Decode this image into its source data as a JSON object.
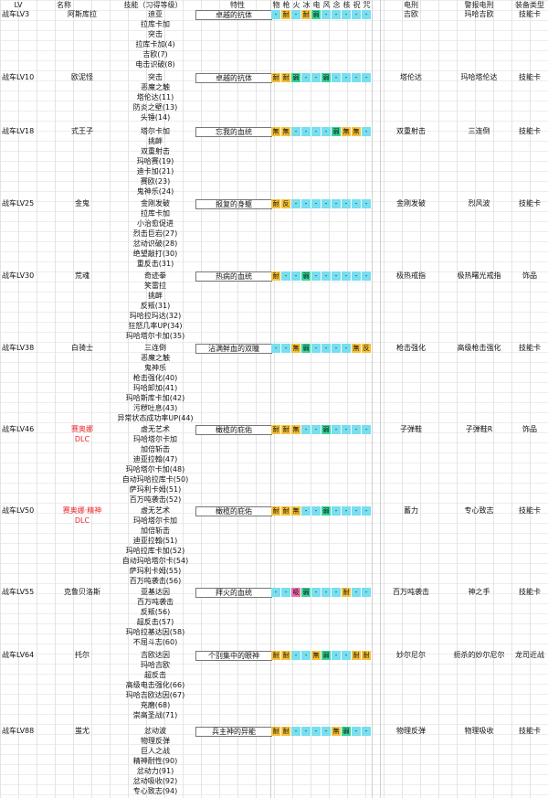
{
  "headers": [
    "LV",
    "名称",
    "技能（习得等级）",
    "特性",
    "物",
    "枪",
    "火",
    "冰",
    "电",
    "风",
    "念",
    "核",
    "祝",
    "咒",
    "电刑",
    "警报电刑",
    "装备类型"
  ],
  "colors": {
    "耐": "#f5c13a",
    "無": "#f5c13a",
    "反": "#f5c13a",
    "弱": "#35d49a",
    "吸": "#f06ea9",
    "-": "#77dff0",
    "dash_pink": "#f58cc4",
    "dlc_red": "#e8272a"
  },
  "rows": [
    {
      "lv": "战车LV3",
      "name": "阿斯库拉",
      "dlc": "",
      "skills": [
        "迪亚",
        "拉库卡加",
        "突击",
        "拉库卡加(4)",
        "吉欧(7)",
        "电击识破(8)"
      ],
      "trait": "卓越的抗体",
      "res": [
        "-",
        "耐",
        "-",
        "耐",
        "弱",
        "-",
        "-",
        "-",
        "-",
        "-"
      ],
      "shock": "吉欧",
      "alarm": "玛哈吉欧",
      "equip": "技能卡"
    },
    {
      "lv": "战车LV10",
      "name": "欧泥怪",
      "dlc": "",
      "skills": [
        "突击",
        "恶魔之触",
        "塔伦达(11)",
        "防炎之壁(13)",
        "头锤(14)"
      ],
      "trait": "卓越的抗体",
      "res": [
        "耐",
        "耐",
        "弱",
        "-",
        "-",
        "弱",
        "-",
        "-",
        "-",
        "-"
      ],
      "shock": "塔伦达",
      "alarm": "玛哈塔伦达",
      "equip": "技能卡"
    },
    {
      "lv": "战车LV18",
      "name": "式王子",
      "dlc": "",
      "skills": [
        "塔尔卡加",
        "挑衅",
        "双重射击",
        "玛哈赛(19)",
        "迪卡加(21)",
        "赛欧(23)",
        "鬼神乐(24)"
      ],
      "trait": "忘我的血统",
      "res": [
        "無",
        "無",
        "-",
        "-",
        "-",
        "-",
        "弱",
        "無",
        "無",
        "-"
      ],
      "shock": "双重射击",
      "alarm": "三连倒",
      "equip": "技能卡"
    },
    {
      "lv": "战车LV25",
      "name": "金鬼",
      "dlc": "",
      "skills": [
        "金刚发破",
        "拉库卡加",
        "小治愈促进",
        "烈击巨岩(27)",
        "忿动识破(28)",
        "绝望敲打(30)",
        "重反击(31)"
      ],
      "trait": "报复的身躯",
      "res": [
        "耐",
        "反",
        "-",
        "-",
        "-",
        "-",
        "-",
        "-",
        "-",
        "-"
      ],
      "shock": "金刚发破",
      "alarm": "烈风波",
      "equip": "技能卡"
    },
    {
      "lv": "战车LV30",
      "name": "荒魂",
      "dlc": "",
      "skills": [
        "奇迹拳",
        "笑雷拉",
        "挑衅",
        "反叛(31)",
        "玛哈拉玛达(32)",
        "狂怒几率UP(34)",
        "玛哈塔尔卡加(35)"
      ],
      "trait": "热病的血统",
      "res": [
        "耐",
        "-",
        "-",
        "弱",
        "-",
        "-",
        "-",
        "-",
        "-",
        "-"
      ],
      "shock": "极热戒指",
      "alarm": "极热曙光戒指",
      "equip": "饰品"
    },
    {
      "lv": "战车LV38",
      "name": "白骑士",
      "dlc": "",
      "skills": [
        "三连倒",
        "恶魔之触",
        "鬼神乐",
        "枪击强化(40)",
        "玛哈卸加(41)",
        "玛哈斯库卡加(42)",
        "污秽吐息(43)",
        "异常状态成功率UP(44)"
      ],
      "trait": "沾满鲜血的双瞳",
      "res": [
        "-",
        "-",
        "無",
        "弱",
        "-",
        "-",
        "-",
        "-",
        "無",
        "反"
      ],
      "shock": "枪击强化",
      "alarm": "高级枪击强化",
      "equip": "技能卡"
    },
    {
      "lv": "战车LV46",
      "name": "赛奥娜",
      "dlc": "DLC",
      "skills": [
        "虚无艺术",
        "玛哈塔尔卡加",
        "加倍斩击",
        "迪亚拉翰(47)",
        "玛哈塔尔卡加(48)",
        "自动玛哈拉库卡(50)",
        "萨玛利卡姆(51)",
        "百万吨袭击(52)"
      ],
      "trait": "橄榄的庇佑",
      "res": [
        "耐",
        "耐",
        "無",
        "-",
        "-",
        "弱",
        "-",
        "-",
        "-",
        "-"
      ],
      "shock": "子弹鞋",
      "alarm": "子弹鞋R",
      "equip": "饰品"
    },
    {
      "lv": "战车LV50",
      "name": "赛奥娜·精神",
      "dlc": "DLC",
      "skills": [
        "虚无艺术",
        "玛哈塔尔卡加",
        "加倍斩击",
        "迪亚拉翰(51)",
        "玛哈拉库卡加(52)",
        "自动玛哈塔尔卡(54)",
        "萨玛利卡姆(55)",
        "百万吨袭击(56)"
      ],
      "trait": "橄榄的庇佑",
      "res": [
        "耐",
        "耐",
        "無",
        "-",
        "-",
        "弱",
        "-",
        "-",
        "-",
        "-"
      ],
      "shock": "蓄力",
      "alarm": "专心致志",
      "equip": "技能卡"
    },
    {
      "lv": "战车LV55",
      "name": "克鲁贝洛斯",
      "dlc": "",
      "skills": [
        "亚基达因",
        "百万吨袭击",
        "反叛(56)",
        "超反击(57)",
        "玛哈拉基达因(58)",
        "不屈斗志(60)"
      ],
      "trait": "拜火的血统",
      "res": [
        "-",
        "-",
        "吸",
        "弱",
        "-",
        "-",
        "-",
        "耐",
        "-",
        "-"
      ],
      "shock": "百万吨袭击",
      "alarm": "神之手",
      "equip": "技能卡"
    },
    {
      "lv": "战车LV64",
      "name": "托尔",
      "dlc": "",
      "skills": [
        "吉欧达因",
        "玛哈吉欧",
        "超反击",
        "高级电击强化(66)",
        "玛哈吉欧达因(67)",
        "充磨(68)",
        "崇高圣战(71)"
      ],
      "trait": "个别集中的眼神",
      "res": [
        "耐",
        "耐",
        "-",
        "-",
        "無",
        "弱",
        "-",
        "-",
        "耐",
        "耐"
      ],
      "shock": "妙尔尼尔",
      "alarm": "扼杀的妙尔尼尔",
      "equip": "龙司近战"
    },
    {
      "lv": "战车LV88",
      "name": "蚩尤",
      "dlc": "",
      "skills": [
        "忿动波",
        "物理反弹",
        "巨人之战",
        "精神耐性(90)",
        "忿动力(91)",
        "忿动吸收(92)",
        "专心致志(94)"
      ],
      "trait": "兵主神的异能",
      "res": [
        "耐",
        "耐",
        "-",
        "-",
        "-",
        "-",
        "無",
        "弱",
        "-",
        "-"
      ],
      "shock": "物理反弹",
      "alarm": "物理吸收",
      "equip": "技能卡"
    }
  ]
}
